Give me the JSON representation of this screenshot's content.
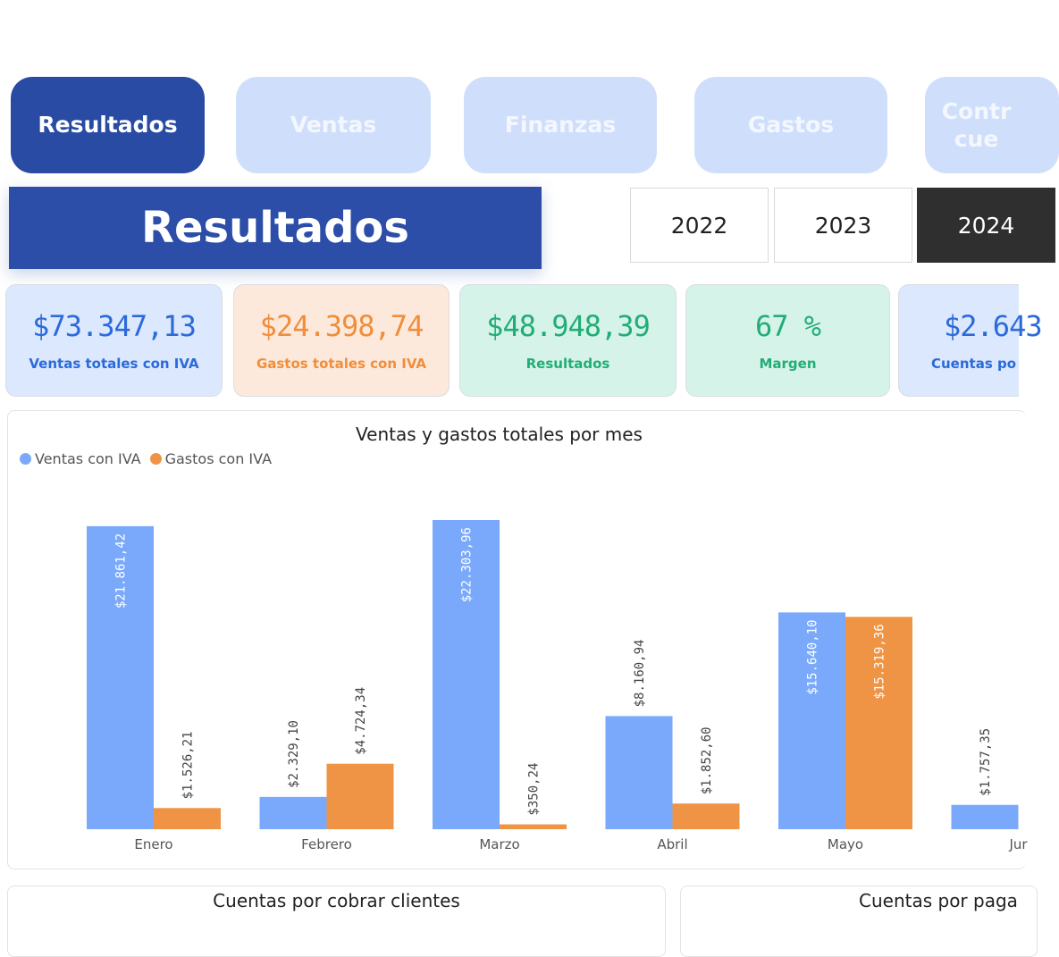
{
  "nav": {
    "tabs": [
      {
        "label": "Resultados",
        "active": true
      },
      {
        "label": "Ventas",
        "active": false
      },
      {
        "label": "Finanzas",
        "active": false
      },
      {
        "label": "Gastos",
        "active": false
      },
      {
        "label": "Contr\ncue",
        "active": false
      }
    ]
  },
  "page_title": "Resultados",
  "years": [
    {
      "label": "2022",
      "selected": false
    },
    {
      "label": "2023",
      "selected": false
    },
    {
      "label": "2024",
      "selected": true
    }
  ],
  "kpis": [
    {
      "value": "$73.347,13",
      "label": "Ventas totales con IVA",
      "color": "#2b6ad9",
      "bg": "#dbe8fd"
    },
    {
      "value": "$24.398,74",
      "label": "Gastos totales con IVA",
      "color": "#ef8e3c",
      "bg": "#fde9db"
    },
    {
      "value": "$48.948,39",
      "label": "Resultados",
      "color": "#22ad77",
      "bg": "#d6f3ea"
    },
    {
      "value": "67 %",
      "label": "Margen",
      "color": "#22ad77",
      "bg": "#d6f3ea"
    },
    {
      "value": "$2.643",
      "label": "Cuentas po",
      "color": "#2b6ad9",
      "bg": "#dbe8fd"
    }
  ],
  "chart_data": {
    "type": "bar",
    "title": "Ventas y gastos totales por mes",
    "categories": [
      "Enero",
      "Febrero",
      "Marzo",
      "Abril",
      "Mayo",
      "Jur"
    ],
    "series": [
      {
        "name": "Ventas con IVA",
        "color": "#7aa9fb",
        "values": [
          21861.42,
          2329.1,
          22303.96,
          8160.94,
          15640.1,
          1757.35
        ],
        "labels": [
          "$21.861,42",
          "$2.329,10",
          "$22.303,96",
          "$8.160,94",
          "$15.640,10",
          "$1.757,35"
        ]
      },
      {
        "name": "Gastos con IVA",
        "color": "#ef9445",
        "values": [
          1526.21,
          4724.34,
          350.24,
          1852.6,
          15319.36,
          null
        ],
        "labels": [
          "$1.526,21",
          "$4.724,34",
          "$350,24",
          "$1.852,60",
          "$15.319,36",
          ""
        ]
      }
    ],
    "ylim": [
      0,
      22303.96
    ],
    "grid": false,
    "legend_position": "top-left"
  },
  "bottom_panels": {
    "left_title": "Cuentas por cobrar clientes",
    "right_title": "Cuentas por paga"
  }
}
